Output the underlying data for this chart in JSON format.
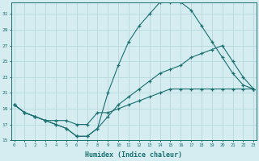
{
  "xlabel": "Humidex (Indice chaleur)",
  "bg_color": "#d5ecf0",
  "grid_color": "#b8d8dc",
  "line_color": "#1a7070",
  "line1_x": [
    0,
    1,
    2,
    3,
    4,
    5,
    6,
    7,
    8,
    9,
    10,
    11,
    12,
    13,
    14,
    15,
    16,
    17,
    18,
    19,
    20,
    21,
    22,
    23
  ],
  "line1_y": [
    19.5,
    18.5,
    18.0,
    17.5,
    17.0,
    16.5,
    15.5,
    15.5,
    16.5,
    21.0,
    24.5,
    27.5,
    29.5,
    31.0,
    32.5,
    32.5,
    32.5,
    31.5,
    29.5,
    27.5,
    25.5,
    23.5,
    22.0,
    21.5
  ],
  "line2_x": [
    0,
    1,
    2,
    3,
    4,
    5,
    6,
    7,
    8,
    9,
    10,
    11,
    12,
    13,
    14,
    15,
    16,
    17,
    18,
    19,
    20,
    21,
    22,
    23
  ],
  "line2_y": [
    19.5,
    18.5,
    18.0,
    17.5,
    17.0,
    16.5,
    15.5,
    15.5,
    16.5,
    18.0,
    19.5,
    20.5,
    21.5,
    22.5,
    23.5,
    24.0,
    24.5,
    25.5,
    26.0,
    26.5,
    27.0,
    25.0,
    23.0,
    21.5
  ],
  "line3_x": [
    0,
    1,
    2,
    3,
    4,
    5,
    6,
    7,
    8,
    9,
    10,
    11,
    12,
    13,
    14,
    15,
    16,
    17,
    18,
    19,
    20,
    21,
    22,
    23
  ],
  "line3_y": [
    19.5,
    18.5,
    18.0,
    17.5,
    17.5,
    17.5,
    17.0,
    17.0,
    18.5,
    18.5,
    19.0,
    19.5,
    20.0,
    20.5,
    21.0,
    21.5,
    21.5,
    21.5,
    21.5,
    21.5,
    21.5,
    21.5,
    21.5,
    21.5
  ],
  "xmin": 0,
  "xmax": 23,
  "ymin": 15,
  "ymax": 32,
  "yticks": [
    15,
    17,
    19,
    21,
    23,
    25,
    27,
    29,
    31
  ],
  "xticks": [
    0,
    1,
    2,
    3,
    4,
    5,
    6,
    7,
    8,
    9,
    10,
    11,
    12,
    13,
    14,
    15,
    16,
    17,
    18,
    19,
    20,
    21,
    22,
    23
  ]
}
